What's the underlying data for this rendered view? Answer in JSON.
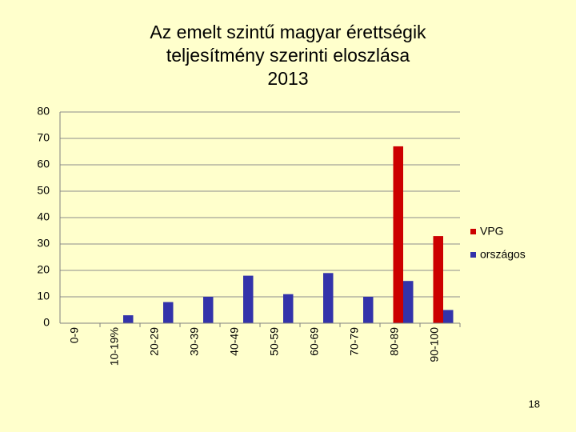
{
  "chart_data": {
    "type": "bar",
    "title": [
      "Az emelt szintű magyar érettségik",
      "teljesítmény szerinti eloszlása",
      "2013"
    ],
    "categories": [
      "0-9",
      "10-19%",
      "20-29",
      "30-39",
      "40-49",
      "50-59",
      "60-69",
      "70-79",
      "80-89",
      "90-100"
    ],
    "series": [
      {
        "name": "VPG",
        "color": "#cc0000",
        "values": [
          0,
          0,
          0,
          0,
          0,
          0,
          0,
          0,
          67,
          33
        ]
      },
      {
        "name": "országos",
        "color": "#3333aa",
        "values": [
          0,
          3,
          8,
          10,
          18,
          11,
          19,
          10,
          16,
          5
        ]
      }
    ],
    "ylim": [
      0,
      80
    ],
    "yticks": [
      0,
      10,
      20,
      30,
      40,
      50,
      60,
      70,
      80
    ],
    "grid": true,
    "legend": "right"
  },
  "slide_number": "18"
}
